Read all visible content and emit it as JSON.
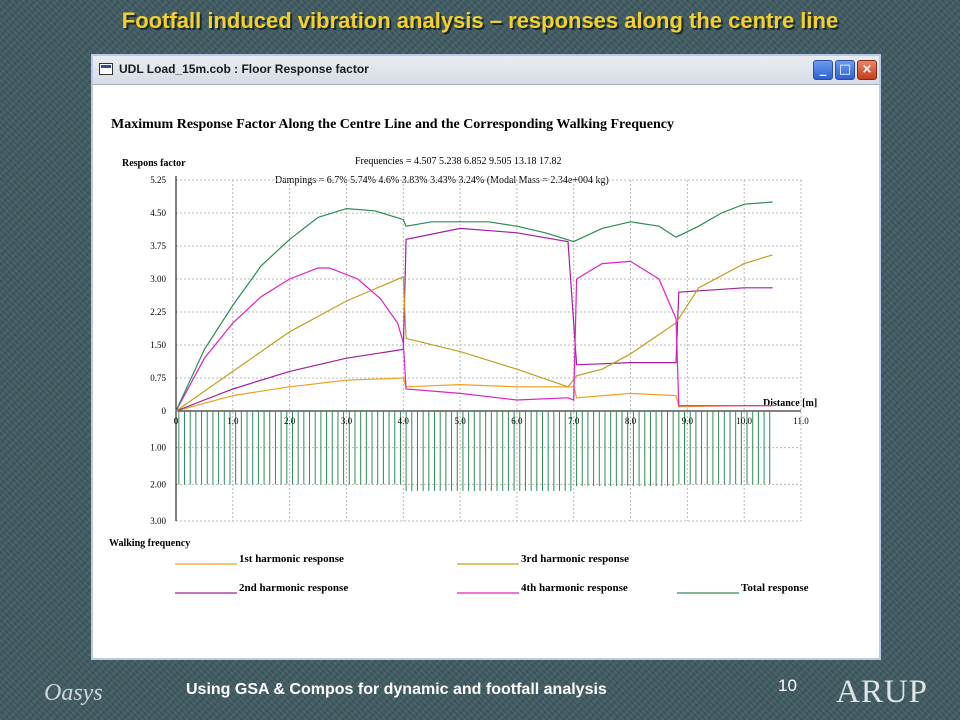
{
  "slide": {
    "title": "Footfall induced vibration analysis – responses along the centre line",
    "footer": "Using GSA & Compos for dynamic and footfall analysis",
    "page_number": "10",
    "logo_left": "Oasys",
    "logo_right": "ARUP"
  },
  "window": {
    "title": "UDL Load_15m.cob : Floor Response factor",
    "controls": [
      "_",
      "□",
      "×"
    ]
  },
  "chart_data": {
    "type": "line",
    "title": "Maximum Response Factor Along the Centre Line and the Corresponding Walking Frequency",
    "ylabel": "Respons factor",
    "xlabel": "Distance [m]",
    "lower_label": "Walking frequency",
    "frequencies_text": "Frequencies = 4.507  5.238  6.852  9.505  13.18  17.82",
    "dampings_text": "Dampings =  6.7%  5.74%   4.6%  3.83%  3.43%  3.24%  (Modal Mass = 2.34e+004 kg)",
    "y_ticks": [
      "0",
      "0.75",
      "1.50",
      "2.25",
      "3.00",
      "3.75",
      "4.50",
      "5.25"
    ],
    "x_ticks": [
      "0",
      "1.0",
      "2.0",
      "3.0",
      "4.0",
      "5.0",
      "6.0",
      "7.0",
      "8.0",
      "9.0",
      "10.0",
      "11.0"
    ],
    "freq_ticks": [
      "1.00",
      "2.00",
      "3.00"
    ],
    "ylim": [
      0,
      5.25
    ],
    "xlim": [
      0,
      11
    ],
    "grid": true,
    "series": [
      {
        "name": "1st harmonic response",
        "color": "#f0a020",
        "points": [
          [
            0,
            0
          ],
          [
            1,
            0.35
          ],
          [
            2,
            0.55
          ],
          [
            3,
            0.7
          ],
          [
            4,
            0.75
          ],
          [
            4.05,
            0.55
          ],
          [
            5,
            0.6
          ],
          [
            6,
            0.55
          ],
          [
            7,
            0.55
          ],
          [
            7.05,
            0.3
          ],
          [
            8,
            0.4
          ],
          [
            8.8,
            0.35
          ],
          [
            8.85,
            0.1
          ],
          [
            10,
            0.12
          ],
          [
            10.5,
            0.12
          ]
        ]
      },
      {
        "name": "2nd harmonic response",
        "color": "#a020a0",
        "points": [
          [
            0,
            0
          ],
          [
            1,
            0.5
          ],
          [
            2,
            0.9
          ],
          [
            3,
            1.2
          ],
          [
            4,
            1.4
          ],
          [
            4.05,
            3.9
          ],
          [
            5,
            4.15
          ],
          [
            6,
            4.05
          ],
          [
            6.9,
            3.85
          ],
          [
            7.05,
            1.05
          ],
          [
            8,
            1.1
          ],
          [
            8.8,
            1.1
          ],
          [
            8.85,
            2.7
          ],
          [
            10,
            2.8
          ],
          [
            10.5,
            2.8
          ]
        ]
      },
      {
        "name": "3rd harmonic response",
        "color": "#c0a020",
        "points": [
          [
            0,
            0
          ],
          [
            1,
            0.9
          ],
          [
            2,
            1.8
          ],
          [
            3,
            2.5
          ],
          [
            4,
            3.05
          ],
          [
            4.05,
            1.65
          ],
          [
            5,
            1.35
          ],
          [
            6,
            0.95
          ],
          [
            6.9,
            0.55
          ],
          [
            7.05,
            0.8
          ],
          [
            7.5,
            0.95
          ],
          [
            8,
            1.3
          ],
          [
            8.8,
            2.0
          ],
          [
            9.2,
            2.8
          ],
          [
            10,
            3.35
          ],
          [
            10.5,
            3.55
          ]
        ]
      },
      {
        "name": "4th harmonic response",
        "color": "#e020c0",
        "points": [
          [
            0,
            0
          ],
          [
            0.5,
            1.2
          ],
          [
            1,
            2.0
          ],
          [
            1.5,
            2.6
          ],
          [
            2,
            3.0
          ],
          [
            2.5,
            3.25
          ],
          [
            2.7,
            3.25
          ],
          [
            3.2,
            3.0
          ],
          [
            3.6,
            2.55
          ],
          [
            3.9,
            2.0
          ],
          [
            4.0,
            1.55
          ],
          [
            4.05,
            0.5
          ],
          [
            5,
            0.4
          ],
          [
            6,
            0.25
          ],
          [
            6.9,
            0.3
          ],
          [
            7.0,
            0.25
          ],
          [
            7.05,
            3.0
          ],
          [
            7.5,
            3.35
          ],
          [
            8,
            3.4
          ],
          [
            8.5,
            3.0
          ],
          [
            8.8,
            2.1
          ],
          [
            8.85,
            0.12
          ],
          [
            10,
            0.12
          ],
          [
            10.5,
            0.12
          ]
        ]
      },
      {
        "name": "Total response",
        "color": "#2e8b57",
        "points": [
          [
            0,
            0
          ],
          [
            0.5,
            1.4
          ],
          [
            1,
            2.4
          ],
          [
            1.5,
            3.3
          ],
          [
            2,
            3.9
          ],
          [
            2.5,
            4.4
          ],
          [
            3,
            4.6
          ],
          [
            3.5,
            4.55
          ],
          [
            4,
            4.35
          ],
          [
            4.05,
            4.2
          ],
          [
            4.5,
            4.3
          ],
          [
            5,
            4.3
          ],
          [
            5.5,
            4.3
          ],
          [
            6,
            4.2
          ],
          [
            6.5,
            4.05
          ],
          [
            7,
            3.85
          ],
          [
            7.5,
            4.15
          ],
          [
            8,
            4.3
          ],
          [
            8.5,
            4.2
          ],
          [
            8.8,
            3.95
          ],
          [
            9.2,
            4.2
          ],
          [
            9.6,
            4.5
          ],
          [
            10,
            4.7
          ],
          [
            10.5,
            4.75
          ]
        ]
      }
    ],
    "legend": [
      {
        "label": "1st harmonic response",
        "color": "#f0a020"
      },
      {
        "label": "3rd harmonic response",
        "color": "#c0a020"
      },
      {
        "label": "2nd harmonic response",
        "color": "#a020a0"
      },
      {
        "label": "4th harmonic response",
        "color": "#e020c0"
      },
      {
        "label": "Total response",
        "color": "#2e8b57"
      }
    ],
    "walking_frequency_segments": [
      {
        "x0": 0.05,
        "x1": 4.0,
        "value": 2.0
      },
      {
        "x0": 4.05,
        "x1": 7.0,
        "value": 2.18
      },
      {
        "x0": 7.05,
        "x1": 8.8,
        "value": 2.05
      },
      {
        "x0": 8.85,
        "x1": 10.5,
        "value": 2.0
      }
    ],
    "walking_frequency_step": 0.1,
    "walking_frequency_color": "#2e8b57"
  }
}
